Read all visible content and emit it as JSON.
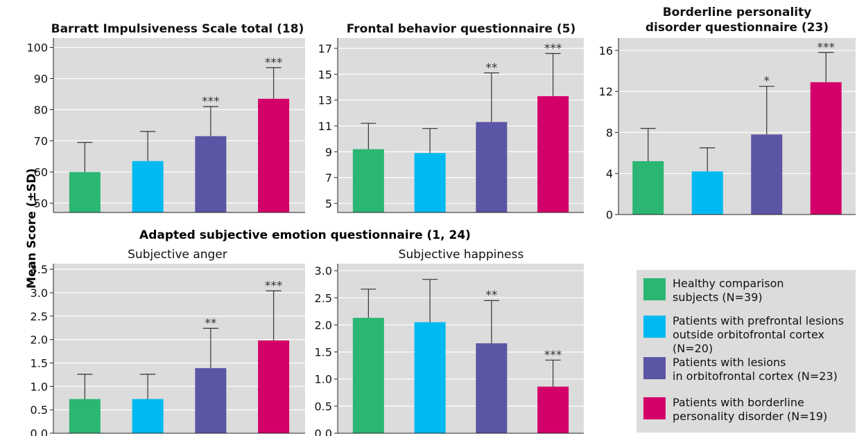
{
  "y_axis_label": "Mean Score (±SD)",
  "group_title": "Adapted subjective emotion questionnaire (1, 24)",
  "colors": {
    "healthy": "#2bb673",
    "prefrontal": "#00b9f1",
    "orbitofrontal": "#5b55a5",
    "borderline": "#d4006a",
    "panel_bg": "#dcdcdc"
  },
  "legend": [
    {
      "label": "Healthy comparison\nsubjects (N=39)",
      "color": "#2bb673"
    },
    {
      "label": "Patients with prefrontal lesions\noutside orbitofrontal cortex (N=20)",
      "color": "#00b9f1"
    },
    {
      "label": "Patients with lesions\nin orbitofrontal cortex (N=23)",
      "color": "#5b55a5"
    },
    {
      "label": "Patients with borderline\npersonality disorder (N=19)",
      "color": "#d4006a"
    }
  ],
  "chart_data": [
    {
      "type": "bar",
      "title": "Barratt Impulsiveness Scale total (18)",
      "categories": [
        "Healthy comparison subjects (N=39)",
        "Patients with prefrontal lesions outside orbitofrontal cortex (N=20)",
        "Patients with lesions in orbitofrontal cortex (N=23)",
        "Patients with borderline personality disorder (N=19)"
      ],
      "values": [
        60,
        63.5,
        71.5,
        83.5
      ],
      "errors": [
        9.5,
        9.5,
        9.5,
        10
      ],
      "significance": [
        "",
        "",
        "***",
        "***"
      ],
      "ylim": [
        47,
        103
      ],
      "yticks": [
        "50",
        "60",
        "70",
        "80",
        "90",
        "100"
      ],
      "ytick_values": [
        50,
        60,
        70,
        80,
        90,
        100
      ],
      "grid": true
    },
    {
      "type": "bar",
      "title": "Frontal behavior questionnaire (5)",
      "categories": [
        "Healthy comparison subjects (N=39)",
        "Patients with prefrontal lesions outside orbitofrontal cortex (N=20)",
        "Patients with lesions in orbitofrontal cortex (N=23)",
        "Patients with borderline personality disorder (N=19)"
      ],
      "values": [
        9.2,
        8.9,
        11.3,
        13.3
      ],
      "errors": [
        2.0,
        1.9,
        3.8,
        3.3
      ],
      "significance": [
        "",
        "",
        "**",
        "***"
      ],
      "ylim": [
        4.3,
        17.8
      ],
      "yticks": [
        "5",
        "7",
        "9",
        "11",
        "13",
        "15",
        "17"
      ],
      "ytick_values": [
        5,
        7,
        9,
        11,
        13,
        15,
        17
      ],
      "grid": true
    },
    {
      "type": "bar",
      "title": "Borderline personality\ndisorder questionnaire (23)",
      "categories": [
        "Healthy comparison subjects (N=39)",
        "Patients with prefrontal lesions outside orbitofrontal cortex (N=20)",
        "Patients with lesions in orbitofrontal cortex (N=23)",
        "Patients with borderline personality disorder (N=19)"
      ],
      "values": [
        5.2,
        4.2,
        7.8,
        12.9
      ],
      "errors": [
        3.2,
        2.3,
        4.7,
        2.9
      ],
      "significance": [
        "",
        "",
        "*",
        "***"
      ],
      "ylim": [
        0,
        17.2
      ],
      "yticks": [
        "0",
        "4",
        "8",
        "12",
        "16"
      ],
      "ytick_values": [
        0,
        4,
        8,
        12,
        16
      ],
      "grid": true
    },
    {
      "type": "bar",
      "title": "Subjective anger",
      "categories": [
        "Healthy comparison subjects (N=39)",
        "Patients with prefrontal lesions outside orbitofrontal cortex (N=20)",
        "Patients with lesions in orbitofrontal cortex (N=23)",
        "Patients with borderline personality disorder (N=19)"
      ],
      "values": [
        0.73,
        0.73,
        1.39,
        1.98
      ],
      "errors": [
        0.53,
        0.53,
        0.85,
        1.06
      ],
      "significance": [
        "",
        "",
        "**",
        "***"
      ],
      "ylim": [
        0,
        3.62
      ],
      "yticks": [
        "0.0",
        "0.5",
        "1.0",
        "1.5",
        "2.0",
        "2.5",
        "3.0",
        "3.5"
      ],
      "ytick_values": [
        0,
        0.5,
        1.0,
        1.5,
        2.0,
        2.5,
        3.0,
        3.5
      ],
      "grid": true
    },
    {
      "type": "bar",
      "title": "Subjective happiness",
      "categories": [
        "Healthy comparison subjects (N=39)",
        "Patients with prefrontal lesions outside orbitofrontal cortex (N=20)",
        "Patients with lesions in orbitofrontal cortex (N=23)",
        "Patients with borderline personality disorder (N=19)"
      ],
      "values": [
        2.13,
        2.05,
        1.66,
        0.86
      ],
      "errors": [
        0.53,
        0.79,
        0.79,
        0.49
      ],
      "significance": [
        "",
        "",
        "**",
        "***"
      ],
      "ylim": [
        0,
        3.13
      ],
      "yticks": [
        "0.0",
        "0.5",
        "1.0",
        "1.5",
        "2.0",
        "2.5",
        "3.0"
      ],
      "ytick_values": [
        0,
        0.5,
        1.0,
        1.5,
        2.0,
        2.5,
        3.0
      ],
      "grid": true
    }
  ]
}
